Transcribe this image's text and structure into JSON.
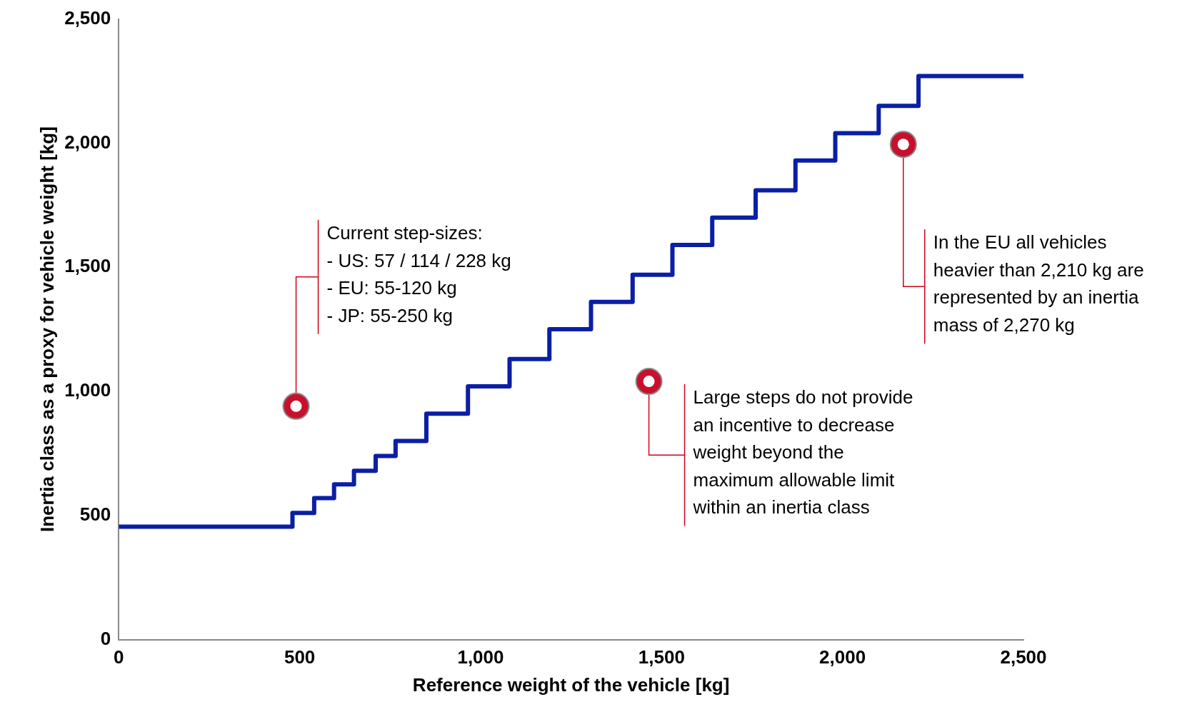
{
  "chart_data": {
    "type": "step",
    "xlabel": "Reference weight of the vehicle [kg]",
    "ylabel": "Inertia class as a proxy for vehicle weight [kg]",
    "x": [
      0,
      480,
      540,
      595,
      650,
      710,
      765,
      850,
      965,
      1080,
      1190,
      1305,
      1420,
      1530,
      1640,
      1760,
      1870,
      1980,
      2100,
      2210,
      2500
    ],
    "series": [
      {
        "color": "#0a1fa5",
        "values": [
          455,
          510,
          570,
          625,
          680,
          740,
          800,
          910,
          1020,
          1130,
          1250,
          1360,
          1470,
          1590,
          1700,
          1810,
          1930,
          2040,
          2150,
          2270,
          2270
        ]
      }
    ],
    "xlim": [
      0,
      2500
    ],
    "ylim": [
      0,
      2500
    ],
    "xticks": [
      0,
      500,
      {
        "value": 1000,
        "label": "1,000"
      },
      {
        "value": 1500,
        "label": "1,500"
      },
      {
        "value": 2000,
        "label": "2,000"
      },
      {
        "value": 2500,
        "label": "2,500"
      }
    ],
    "yticks": [
      0,
      500,
      {
        "value": 1000,
        "label": "1,000"
      },
      {
        "value": 1500,
        "label": "1,500"
      },
      {
        "value": 2000,
        "label": "2,000"
      },
      {
        "value": 2500,
        "label": "2,500"
      }
    ],
    "grid": false,
    "legend": false,
    "annotations": [
      {
        "text": "Current step-sizes:\n- US: 57 / 114 / 228 kg\n- EU: 55-120 kg\n- JP: 55-250 kg",
        "x": 490,
        "y": 940
      },
      {
        "text": "Large steps do not provide\nan incentive to decrease\nweight beyond the\nmaximum allowable limit\nwithin an inertia class",
        "x": 1465,
        "y": 1040
      },
      {
        "text": "In the EU all vehicles\nheavier than 2,210 kg are\nrepresented by an inertia\nmass of 2,270 kg",
        "x": 2168,
        "y": 1995
      }
    ]
  }
}
